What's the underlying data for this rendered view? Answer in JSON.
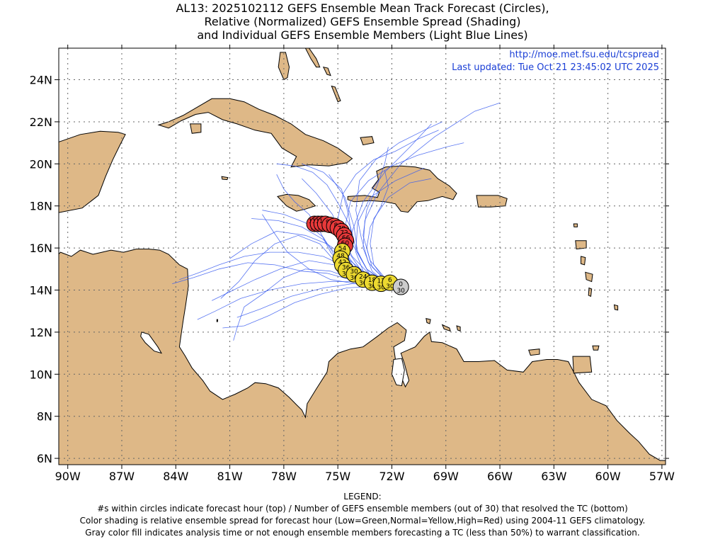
{
  "title": {
    "line1": "AL13: 2025102112 GEFS Ensemble Mean Track Forecast (Circles),",
    "line2": "Relative (Normalized) GEFS Ensemble Spread (Shading)",
    "line3": "and Individual GEFS Ensemble Members (Light Blue Lines)"
  },
  "meta": {
    "url": "http://moe.met.fsu.edu/tcspread",
    "updated": "Last updated: Tue Oct 21 23:45:02 UTC 2025"
  },
  "colors": {
    "land": "#deb887",
    "ocean": "#ffffff",
    "grid": "#666666",
    "member_tracks": "#3a5cf0",
    "spread_gray": "#cccccc",
    "spread_yellow": "#ecd930",
    "spread_red": "#e8393a",
    "text_blue": "#1b3fd6"
  },
  "map": {
    "lon_range": [
      -90.5,
      -56.8
    ],
    "lat_range": [
      5.7,
      25.5
    ],
    "lon_ticks": [
      -90,
      -87,
      -84,
      -81,
      -78,
      -75,
      -72,
      -69,
      -66,
      -63,
      -60,
      -57
    ],
    "lat_ticks": [
      6,
      8,
      10,
      12,
      14,
      16,
      18,
      20,
      22,
      24
    ],
    "lon_labels": [
      "90W",
      "87W",
      "84W",
      "81W",
      "78W",
      "75W",
      "72W",
      "69W",
      "66W",
      "63W",
      "60W",
      "57W"
    ],
    "lat_labels": [
      "6N",
      "8N",
      "10N",
      "12N",
      "14N",
      "16N",
      "18N",
      "20N",
      "22N",
      "24N"
    ]
  },
  "mean_track": [
    {
      "hour": "0",
      "members": "30",
      "lon": -71.5,
      "lat": 14.15,
      "spread": "gray"
    },
    {
      "hour": "6",
      "members": "30",
      "lon": -72.1,
      "lat": 14.35,
      "spread": "yellow"
    },
    {
      "hour": "12",
      "members": "30",
      "lon": -72.6,
      "lat": 14.3,
      "spread": "yellow"
    },
    {
      "hour": "18",
      "members": "30",
      "lon": -73.1,
      "lat": 14.35,
      "spread": "yellow"
    },
    {
      "hour": "24",
      "members": "30",
      "lon": -73.6,
      "lat": 14.5,
      "spread": "yellow"
    },
    {
      "hour": "30",
      "members": "30",
      "lon": -74.1,
      "lat": 14.75,
      "spread": "yellow"
    },
    {
      "hour": "36",
      "members": "30",
      "lon": -74.55,
      "lat": 14.95,
      "spread": "yellow"
    },
    {
      "hour": "42",
      "members": "30",
      "lon": -74.75,
      "lat": 15.2,
      "spread": "yellow"
    },
    {
      "hour": "48",
      "members": "30",
      "lon": -74.85,
      "lat": 15.5,
      "spread": "yellow"
    },
    {
      "hour": "54",
      "members": "30",
      "lon": -74.75,
      "lat": 15.85,
      "spread": "yellow"
    },
    {
      "hour": "60",
      "members": "30",
      "lon": -74.6,
      "lat": 16.1,
      "spread": "red"
    },
    {
      "hour": "66",
      "members": "30",
      "lon": -74.55,
      "lat": 16.35,
      "spread": "red"
    },
    {
      "hour": "72",
      "members": "30",
      "lon": -74.65,
      "lat": 16.6,
      "spread": "red"
    },
    {
      "hour": "78",
      "members": "30",
      "lon": -74.8,
      "lat": 16.8,
      "spread": "red"
    },
    {
      "hour": "84",
      "members": "30",
      "lon": -75.0,
      "lat": 16.95,
      "spread": "red"
    },
    {
      "hour": "90",
      "members": "30",
      "lon": -75.2,
      "lat": 17.05,
      "spread": "red"
    },
    {
      "hour": "96",
      "members": "30",
      "lon": -75.45,
      "lat": 17.1,
      "spread": "red"
    },
    {
      "hour": "102",
      "members": "30",
      "lon": -75.7,
      "lat": 17.15,
      "spread": "red"
    },
    {
      "hour": "108",
      "members": "30",
      "lon": -75.9,
      "lat": 17.15,
      "spread": "red"
    },
    {
      "hour": "114",
      "members": "30",
      "lon": -76.1,
      "lat": 17.15,
      "spread": "red"
    },
    {
      "hour": "120",
      "members": "30",
      "lon": -76.3,
      "lat": 17.15,
      "spread": "red"
    }
  ],
  "legend": {
    "heading": "LEGEND:",
    "line1": "#s within circles indicate forecast hour (top) / Number of GEFS ensemble members (out of 30) that resolved the TC (bottom)",
    "line2": "Color shading is relative ensemble spread for forecast hour (Low=Green,Normal=Yellow,High=Red) using 2004-11 GEFS climatology.",
    "line3": "Gray color fill indicates analysis time or not enough ensemble members forecasting a TC (less than 50%) to warrant classification."
  }
}
